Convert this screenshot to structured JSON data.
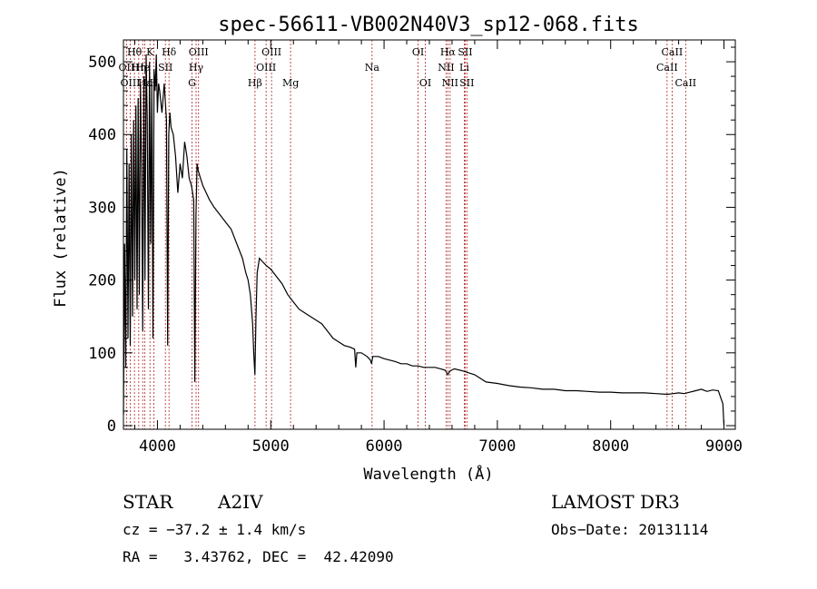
{
  "chart_data": {
    "type": "line",
    "title": "spec-56611-VB002N40V3_sp12-068.fits",
    "xlabel": "Wavelength (Å)",
    "ylabel": "Flux (relative)",
    "xlim": [
      3700,
      9100
    ],
    "ylim": [
      -5,
      530
    ],
    "xticks": [
      4000,
      5000,
      6000,
      7000,
      8000,
      9000
    ],
    "yticks": [
      0,
      100,
      200,
      300,
      400,
      500
    ],
    "series": [
      {
        "name": "spectrum",
        "x": [
          3700,
          3710,
          3720,
          3730,
          3740,
          3750,
          3760,
          3770,
          3780,
          3790,
          3800,
          3810,
          3820,
          3830,
          3840,
          3850,
          3860,
          3870,
          3880,
          3890,
          3900,
          3910,
          3920,
          3930,
          3940,
          3950,
          3960,
          3970,
          3980,
          3990,
          4000,
          4010,
          4020,
          4040,
          4060,
          4080,
          4090,
          4100,
          4110,
          4120,
          4140,
          4160,
          4180,
          4200,
          4220,
          4240,
          4260,
          4280,
          4300,
          4320,
          4330,
          4340,
          4350,
          4360,
          4380,
          4400,
          4430,
          4460,
          4500,
          4550,
          4600,
          4650,
          4700,
          4750,
          4780,
          4800,
          4820,
          4840,
          4850,
          4860,
          4870,
          4880,
          4900,
          4930,
          4960,
          5000,
          5050,
          5100,
          5150,
          5200,
          5250,
          5300,
          5350,
          5400,
          5450,
          5500,
          5550,
          5600,
          5650,
          5700,
          5740,
          5750,
          5760,
          5800,
          5850,
          5880,
          5890,
          5900,
          5950,
          6000,
          6050,
          6100,
          6150,
          6200,
          6250,
          6300,
          6350,
          6400,
          6450,
          6500,
          6540,
          6563,
          6580,
          6620,
          6700,
          6800,
          6900,
          7000,
          7100,
          7200,
          7300,
          7400,
          7500,
          7600,
          7700,
          7800,
          7900,
          8000,
          8100,
          8200,
          8300,
          8400,
          8500,
          8550,
          8600,
          8650,
          8700,
          8750,
          8800,
          8850,
          8900,
          8950,
          8990,
          9000
        ],
        "values": [
          15,
          250,
          80,
          380,
          120,
          360,
          110,
          400,
          150,
          420,
          200,
          440,
          160,
          450,
          180,
          470,
          350,
          130,
          480,
          200,
          510,
          420,
          160,
          500,
          250,
          470,
          120,
          490,
          460,
          510,
          430,
          470,
          460,
          430,
          470,
          420,
          110,
          400,
          430,
          410,
          400,
          370,
          320,
          360,
          340,
          390,
          370,
          340,
          330,
          310,
          60,
          290,
          360,
          350,
          340,
          330,
          320,
          310,
          300,
          290,
          280,
          270,
          250,
          230,
          210,
          200,
          180,
          140,
          100,
          70,
          150,
          210,
          230,
          225,
          220,
          215,
          205,
          195,
          180,
          170,
          160,
          155,
          150,
          145,
          140,
          130,
          120,
          115,
          110,
          108,
          105,
          80,
          100,
          100,
          95,
          90,
          85,
          95,
          95,
          92,
          90,
          88,
          85,
          85,
          82,
          82,
          80,
          80,
          80,
          78,
          76,
          70,
          75,
          78,
          75,
          70,
          60,
          58,
          55,
          53,
          52,
          50,
          50,
          48,
          48,
          47,
          46,
          46,
          45,
          45,
          45,
          44,
          43,
          44,
          45,
          44,
          46,
          48,
          50,
          47,
          49,
          48,
          30,
          0
        ]
      }
    ],
    "spectral_lines": [
      {
        "label": "OII",
        "wavelength": 3727,
        "row": 1
      },
      {
        "label": "Hθ",
        "wavelength": 3797,
        "row": 0
      },
      {
        "label": "OIII",
        "wavelength": 3760,
        "row": 2
      },
      {
        "label": "Hη",
        "wavelength": 3835,
        "row": 1
      },
      {
        "label": "K",
        "wavelength": 3934,
        "row": 0
      },
      {
        "label": "Hε",
        "wavelength": 3889,
        "row": 2
      },
      {
        "label": "He",
        "wavelength": 3870,
        "row": 1
      },
      {
        "label": "H",
        "wavelength": 3969,
        "row": 2
      },
      {
        "label": "SII",
        "wavelength": 4070,
        "row": 1
      },
      {
        "label": "Hδ",
        "wavelength": 4102,
        "row": 0
      },
      {
        "label": "OIII",
        "wavelength": 4363,
        "row": 0
      },
      {
        "label": "Hγ",
        "wavelength": 4341,
        "row": 1
      },
      {
        "label": "G",
        "wavelength": 4305,
        "row": 2
      },
      {
        "label": "Hβ",
        "wavelength": 4861,
        "row": 2
      },
      {
        "label": "OIII",
        "wavelength": 5007,
        "row": 0
      },
      {
        "label": "OIII",
        "wavelength": 4959,
        "row": 1
      },
      {
        "label": "Mg",
        "wavelength": 5175,
        "row": 2
      },
      {
        "label": "Na",
        "wavelength": 5894,
        "row": 1
      },
      {
        "label": "OI",
        "wavelength": 6300,
        "row": 0
      },
      {
        "label": "OI",
        "wavelength": 6364,
        "row": 2
      },
      {
        "label": "Hα",
        "wavelength": 6563,
        "row": 0
      },
      {
        "label": "SII",
        "wavelength": 6716,
        "row": 0
      },
      {
        "label": "NII",
        "wavelength": 6548,
        "row": 1
      },
      {
        "label": "Li",
        "wavelength": 6708,
        "row": 1
      },
      {
        "label": "NII",
        "wavelength": 6583,
        "row": 2
      },
      {
        "label": "SII",
        "wavelength": 6731,
        "row": 2
      },
      {
        "label": "CaII",
        "wavelength": 8542,
        "row": 0
      },
      {
        "label": "CaII",
        "wavelength": 8498,
        "row": 1
      },
      {
        "label": "CaII",
        "wavelength": 8662,
        "row": 2
      }
    ]
  },
  "info": {
    "class": "STAR",
    "subclass": "A2IV",
    "survey": "LAMOST DR3",
    "cz": "cz = −37.2 ± 1.4 km/s",
    "obs_date": "Obs−Date: 20131114",
    "coords": "RA =   3.43762, DEC =  42.42090"
  },
  "colors": {
    "line_marker": "#b22222",
    "spectrum": "#000000"
  }
}
